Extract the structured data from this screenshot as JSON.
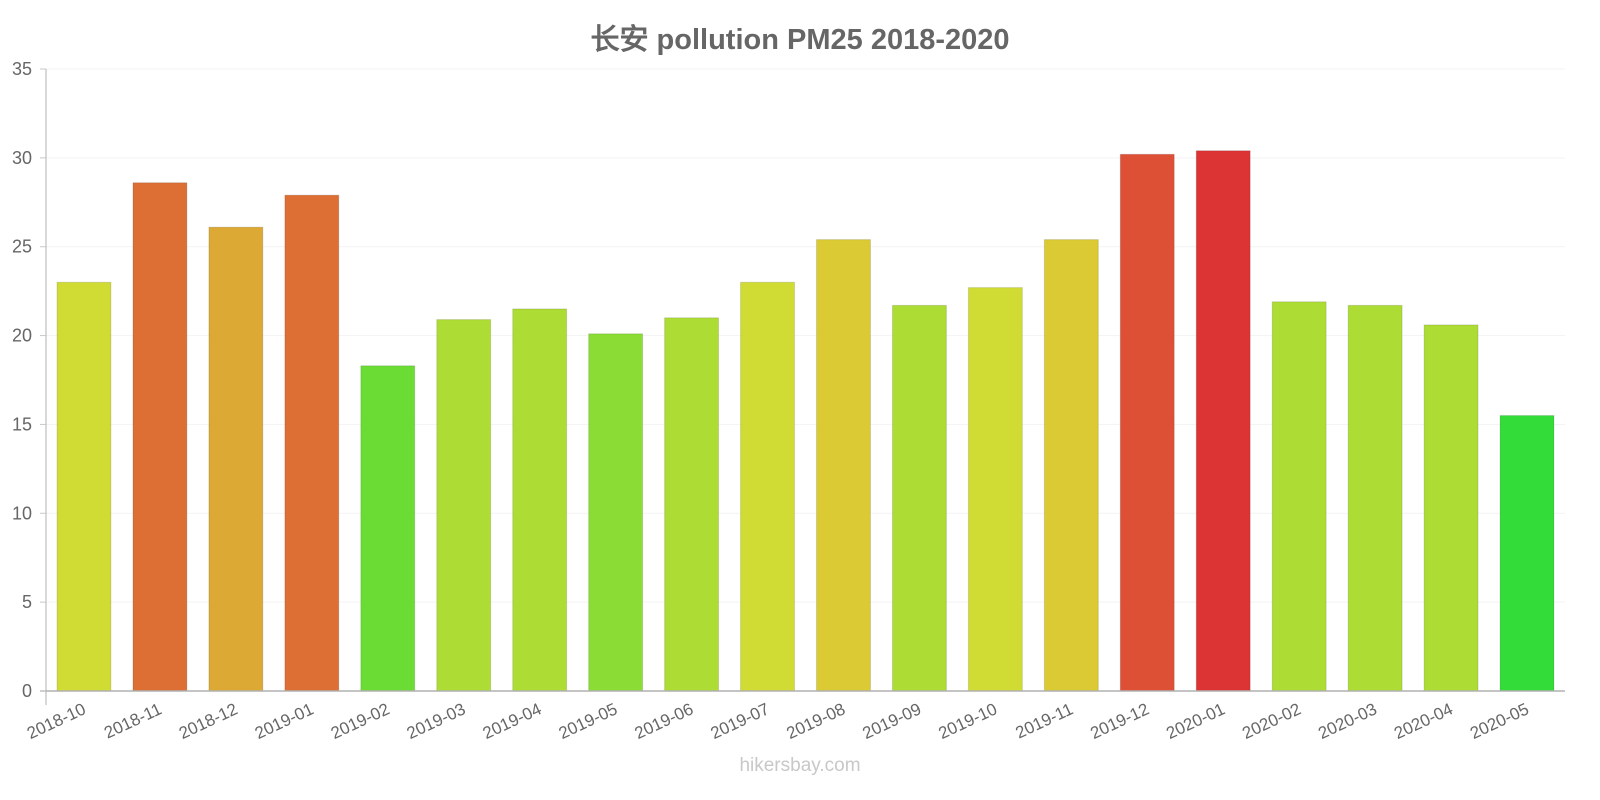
{
  "title": "长安 pollution PM25 2018-2020",
  "watermark": "hikersbay.com",
  "chart_data": {
    "type": "bar",
    "title": "长安 pollution PM25 2018-2020",
    "xlabel": "",
    "ylabel": "",
    "ylim": [
      0,
      35
    ],
    "yticks": [
      0,
      5,
      10,
      15,
      20,
      25,
      30,
      35
    ],
    "grid": true,
    "legend": "none",
    "categories": [
      "2018-10",
      "2018-11",
      "2018-12",
      "2019-01",
      "2019-02",
      "2019-03",
      "2019-04",
      "2019-05",
      "2019-06",
      "2019-07",
      "2019-08",
      "2019-09",
      "2019-10",
      "2019-11",
      "2019-12",
      "2020-01",
      "2020-02",
      "2020-03",
      "2020-04",
      "2020-05"
    ],
    "values": [
      23.0,
      28.6,
      26.1,
      27.9,
      18.3,
      20.9,
      21.5,
      20.1,
      21.0,
      23.0,
      25.4,
      21.7,
      22.7,
      25.4,
      30.2,
      30.4,
      21.9,
      21.7,
      20.6,
      15.5
    ],
    "colors": [
      "#d0dc33",
      "#dd6f35",
      "#dca934",
      "#dd6f35",
      "#6adc34",
      "#addc34",
      "#addc34",
      "#8bdc34",
      "#addc34",
      "#d0dc33",
      "#dbca33",
      "#addc34",
      "#d0dc33",
      "#dbca33",
      "#dd5035",
      "#dc3435",
      "#addc34",
      "#addc34",
      "#addc34",
      "#34dc39"
    ]
  }
}
